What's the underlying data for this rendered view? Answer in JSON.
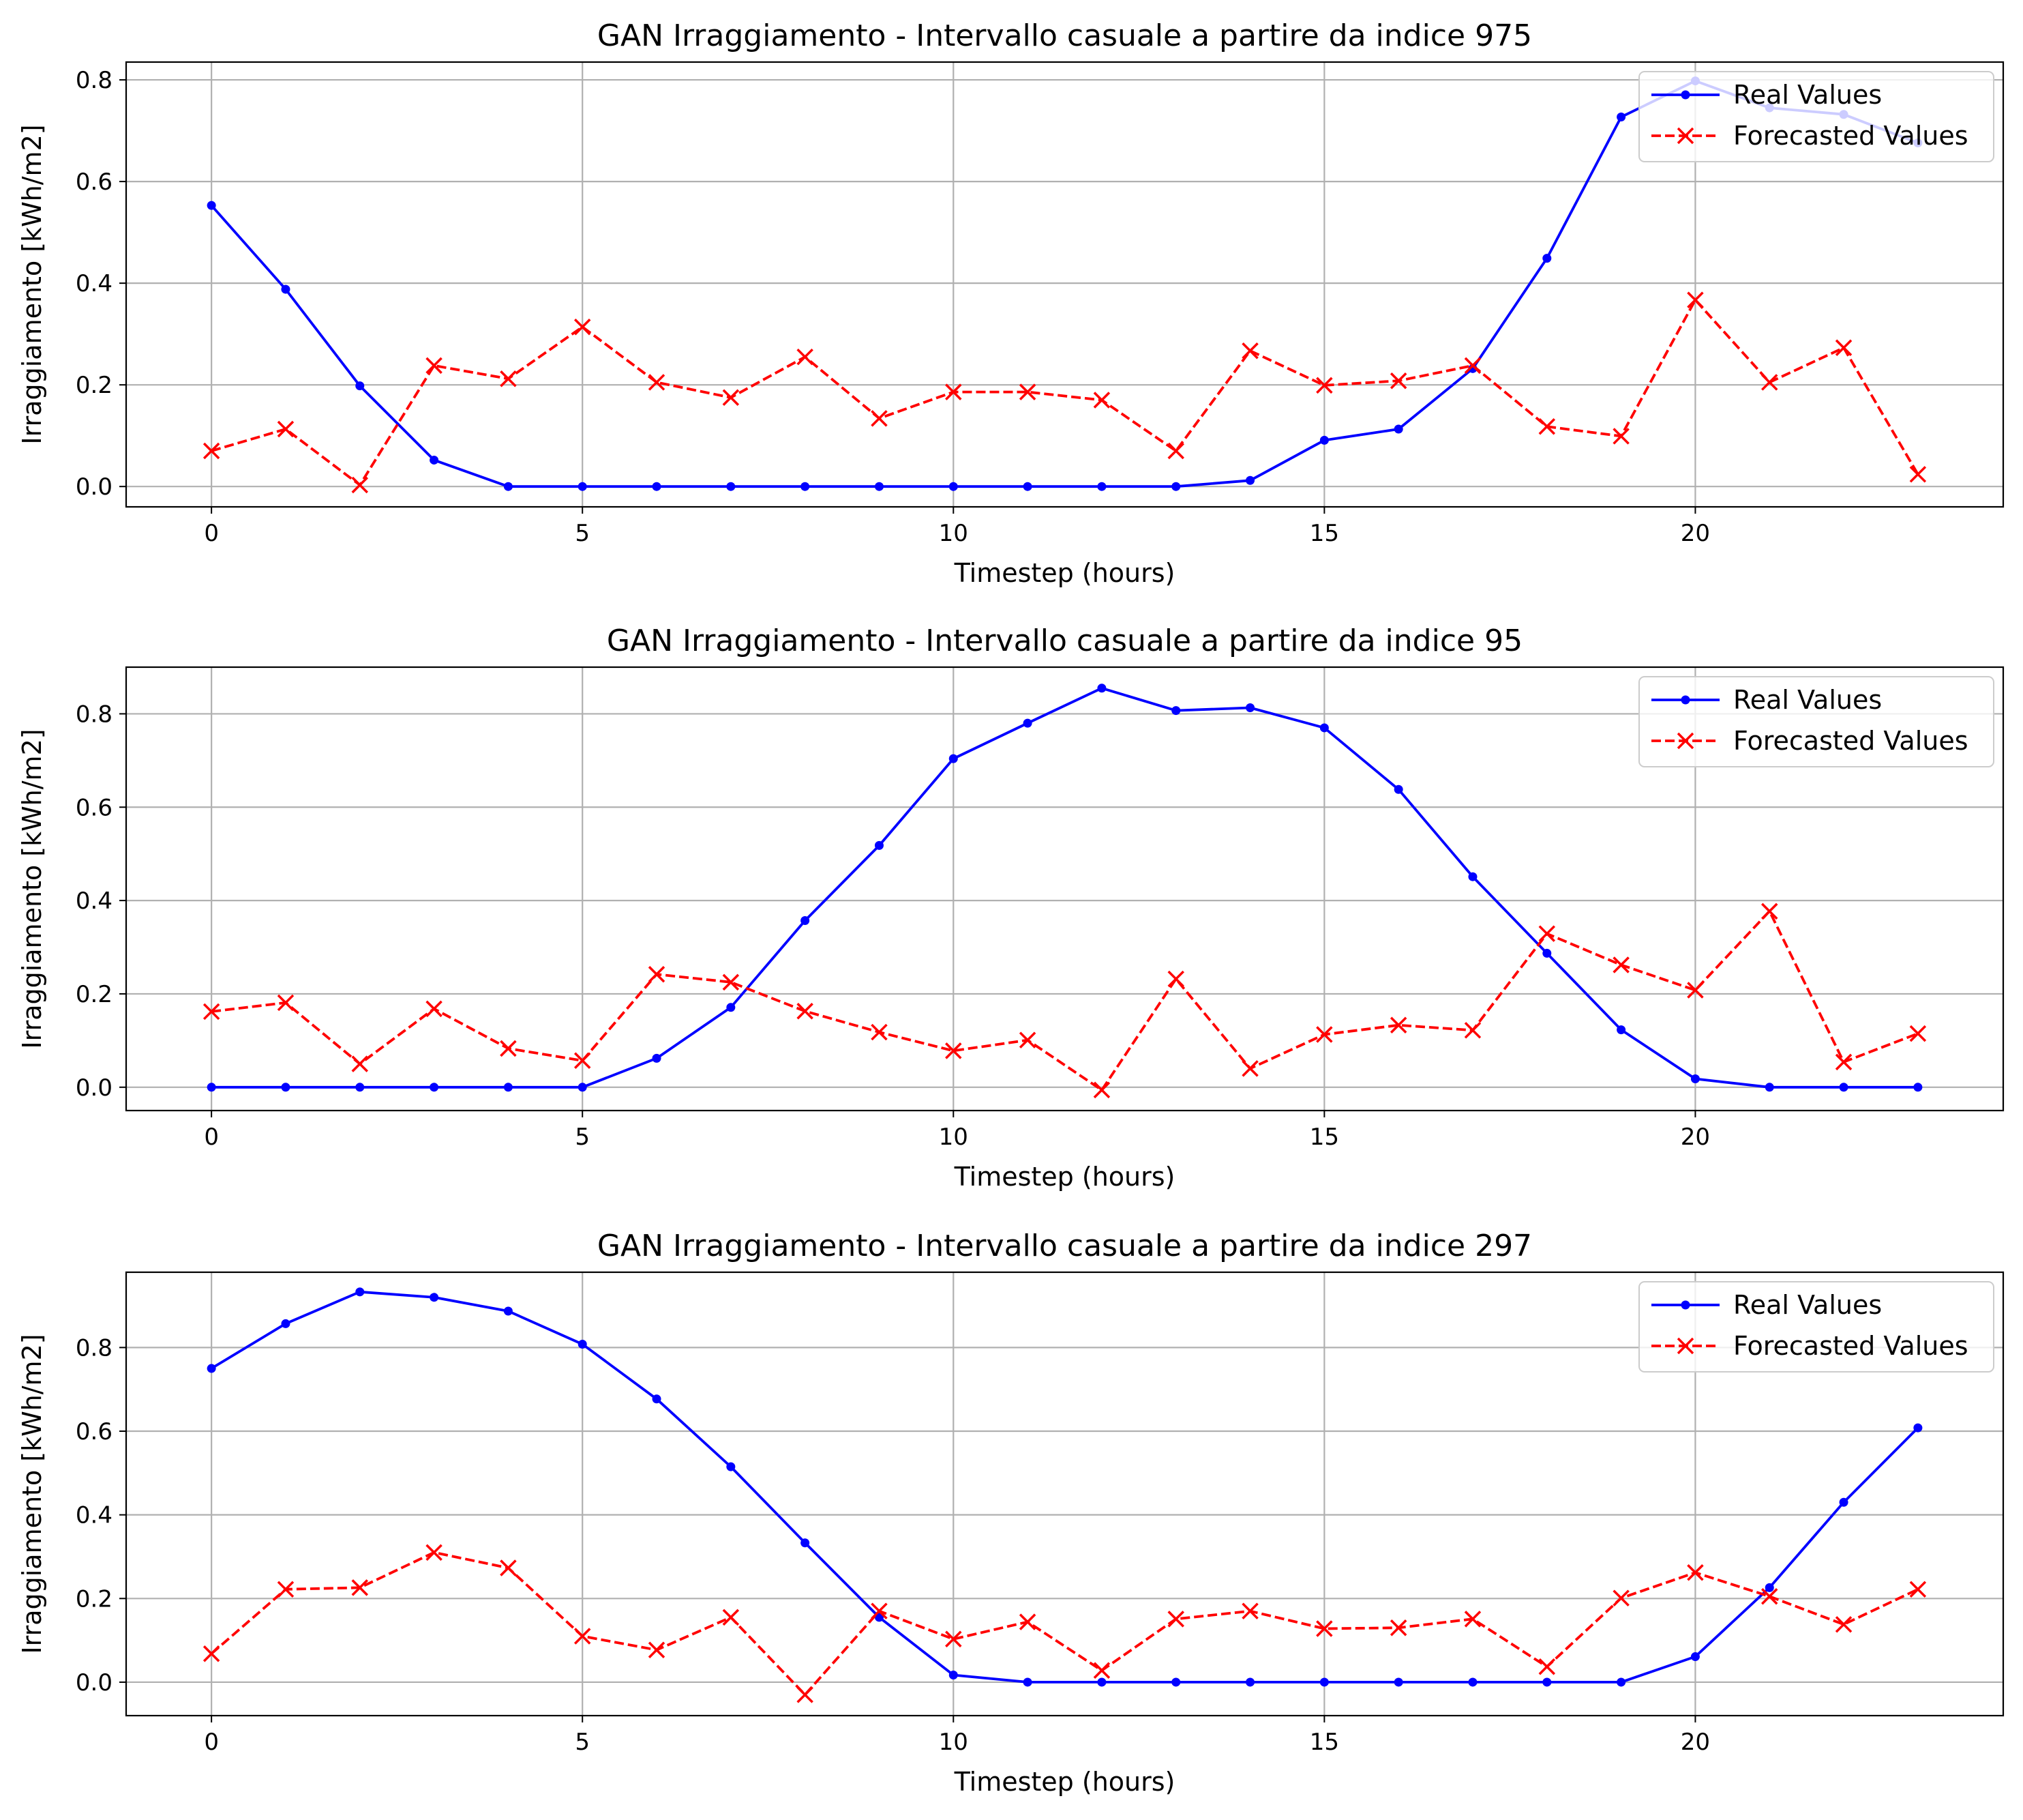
{
  "chart_data": [
    {
      "type": "line",
      "title": "GAN Irraggiamento - Intervallo casuale a partire da indice 975",
      "xlabel": "Timestep (hours)",
      "ylabel": "Irraggiamento [kWh/m2]",
      "xlim": [
        -1.15,
        24.15
      ],
      "ylim": [
        -0.04,
        0.835
      ],
      "xticks": [
        0,
        5,
        10,
        15,
        20
      ],
      "yticks": [
        0.0,
        0.2,
        0.4,
        0.6,
        0.8
      ],
      "grid": true,
      "legend": "top-right",
      "x": [
        0,
        1,
        2,
        3,
        4,
        5,
        6,
        7,
        8,
        9,
        10,
        11,
        12,
        13,
        14,
        15,
        16,
        17,
        18,
        19,
        20,
        21,
        22,
        23
      ],
      "series": [
        {
          "name": "Real Values",
          "color": "#0000ff",
          "style": "solid",
          "marker": "dot",
          "values": [
            0.553,
            0.388,
            0.198,
            0.052,
            0.0,
            0.0,
            0.0,
            0.0,
            0.0,
            0.0,
            0.0,
            0.0,
            0.0,
            0.0,
            0.012,
            0.091,
            0.113,
            0.232,
            0.449,
            0.727,
            0.798,
            0.745,
            0.732,
            0.676
          ]
        },
        {
          "name": "Forecasted Values",
          "color": "#ff0000",
          "style": "dashed",
          "marker": "x",
          "values": [
            0.07,
            0.113,
            0.003,
            0.238,
            0.212,
            0.314,
            0.205,
            0.175,
            0.255,
            0.134,
            0.186,
            0.186,
            0.17,
            0.07,
            0.267,
            0.199,
            0.208,
            0.238,
            0.118,
            0.099,
            0.367,
            0.205,
            0.273,
            0.024
          ]
        }
      ]
    },
    {
      "type": "line",
      "title": "GAN Irraggiamento - Intervallo casuale a partire da indice 95",
      "xlabel": "Timestep (hours)",
      "ylabel": "Irraggiamento [kWh/m2]",
      "xlim": [
        -1.15,
        24.15
      ],
      "ylim": [
        -0.05,
        0.9
      ],
      "xticks": [
        0,
        5,
        10,
        15,
        20
      ],
      "yticks": [
        0.0,
        0.2,
        0.4,
        0.6,
        0.8
      ],
      "grid": true,
      "legend": "top-right",
      "x": [
        0,
        1,
        2,
        3,
        4,
        5,
        6,
        7,
        8,
        9,
        10,
        11,
        12,
        13,
        14,
        15,
        16,
        17,
        18,
        19,
        20,
        21,
        22,
        23
      ],
      "series": [
        {
          "name": "Real Values",
          "color": "#0000ff",
          "style": "solid",
          "marker": "dot",
          "values": [
            0.0,
            0.0,
            0.0,
            0.0,
            0.0,
            0.0,
            0.062,
            0.171,
            0.357,
            0.518,
            0.704,
            0.78,
            0.855,
            0.807,
            0.813,
            0.77,
            0.638,
            0.451,
            0.287,
            0.123,
            0.018,
            0.0,
            0.0,
            0.0
          ]
        },
        {
          "name": "Forecasted Values",
          "color": "#ff0000",
          "style": "dashed",
          "marker": "x",
          "values": [
            0.162,
            0.181,
            0.05,
            0.168,
            0.083,
            0.057,
            0.242,
            0.225,
            0.163,
            0.118,
            0.078,
            0.101,
            -0.006,
            0.232,
            0.04,
            0.113,
            0.133,
            0.122,
            0.329,
            0.262,
            0.208,
            0.377,
            0.054,
            0.115
          ]
        }
      ]
    },
    {
      "type": "line",
      "title": "GAN Irraggiamento - Intervallo casuale a partire da indice 297",
      "xlabel": "Timestep (hours)",
      "ylabel": "Irraggiamento [kWh/m2]",
      "xlim": [
        -1.15,
        24.15
      ],
      "ylim": [
        -0.08,
        0.98
      ],
      "xticks": [
        0,
        5,
        10,
        15,
        20
      ],
      "yticks": [
        0.0,
        0.2,
        0.4,
        0.6,
        0.8
      ],
      "grid": true,
      "legend": "top-right",
      "x": [
        0,
        1,
        2,
        3,
        4,
        5,
        6,
        7,
        8,
        9,
        10,
        11,
        12,
        13,
        14,
        15,
        16,
        17,
        18,
        19,
        20,
        21,
        22,
        23
      ],
      "series": [
        {
          "name": "Real Values",
          "color": "#0000ff",
          "style": "solid",
          "marker": "dot",
          "values": [
            0.75,
            0.857,
            0.933,
            0.92,
            0.887,
            0.808,
            0.677,
            0.515,
            0.333,
            0.155,
            0.017,
            0.0,
            0.0,
            0.0,
            0.0,
            0.0,
            0.0,
            0.0,
            0.0,
            0.0,
            0.061,
            0.226,
            0.43,
            0.608
          ]
        },
        {
          "name": "Forecasted Values",
          "color": "#ff0000",
          "style": "dashed",
          "marker": "x",
          "values": [
            0.068,
            0.222,
            0.226,
            0.31,
            0.273,
            0.11,
            0.077,
            0.155,
            -0.03,
            0.17,
            0.103,
            0.144,
            0.028,
            0.151,
            0.17,
            0.128,
            0.13,
            0.151,
            0.037,
            0.201,
            0.262,
            0.205,
            0.138,
            0.222
          ]
        }
      ]
    }
  ]
}
